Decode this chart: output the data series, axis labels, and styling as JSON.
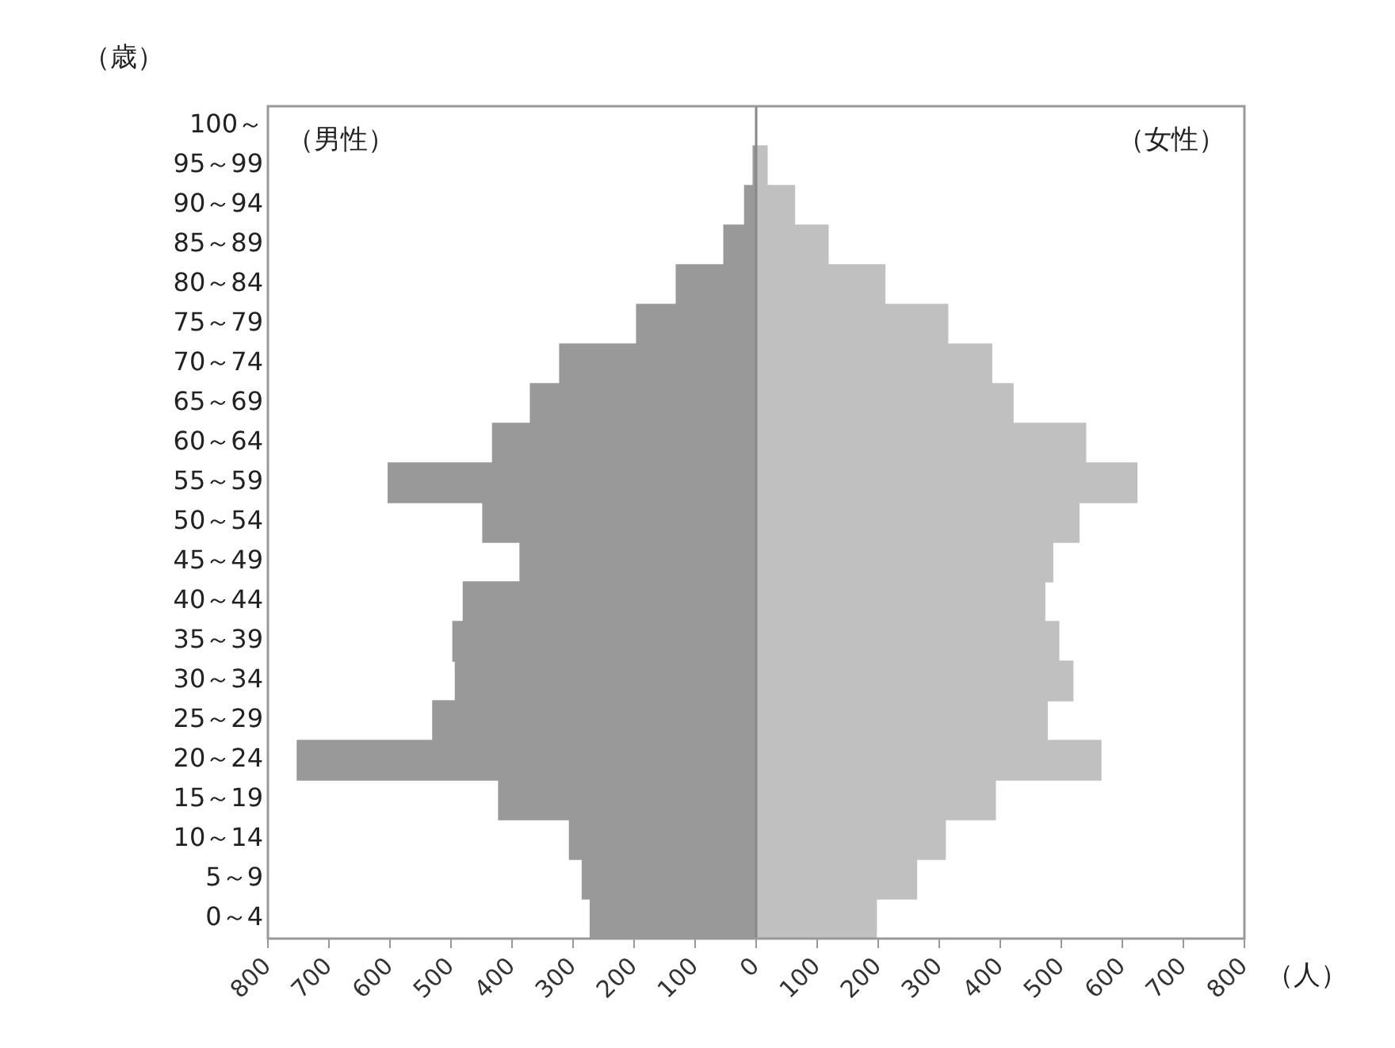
{
  "chart_data": {
    "type": "bar",
    "orientation": "horizontal",
    "stacked": true,
    "ylabel": "（歳）",
    "xlabel": "（人）",
    "categories": [
      "100～",
      "95～99",
      "90～94",
      "85～89",
      "80～84",
      "75～79",
      "70～74",
      "65～69",
      "60～64",
      "55～59",
      "50～54",
      "45～49",
      "40～44",
      "35～39",
      "30～34",
      "25～29",
      "20～24",
      "15～19",
      "10～14",
      "5～9",
      "0～4"
    ],
    "series": [
      {
        "color": "#999999",
        "values": [
          0,
          -5,
          -19,
          -53,
          -131,
          -196,
          -322,
          -370,
          -432,
          -603,
          -448,
          -387,
          -480,
          -497,
          -493,
          -530,
          -752,
          -422,
          -306,
          -285,
          -272
        ]
      },
      {
        "color": "#c0c0c0",
        "values": [
          0,
          18,
          63,
          118,
          211,
          314,
          386,
          421,
          540,
          624,
          529,
          486,
          473,
          496,
          519,
          477,
          565,
          392,
          310,
          263,
          197
        ]
      }
    ],
    "xlim": [
      -800,
      800
    ],
    "xticks": [
      {
        "value": -800,
        "label": "800"
      },
      {
        "value": -700,
        "label": "700"
      },
      {
        "value": -600,
        "label": "600"
      },
      {
        "value": -500,
        "label": "500"
      },
      {
        "value": -400,
        "label": "400"
      },
      {
        "value": -300,
        "label": "300"
      },
      {
        "value": -200,
        "label": "200"
      },
      {
        "value": -100,
        "label": "100"
      },
      0,
      100,
      200,
      300,
      400,
      500,
      600,
      700,
      800
    ],
    "ref_lines": [
      {
        "axis": "x",
        "value": 0,
        "color": "#888888"
      }
    ],
    "annotations": [
      "（男性）",
      "（女性）"
    ],
    "grid": false,
    "legend": false
  }
}
